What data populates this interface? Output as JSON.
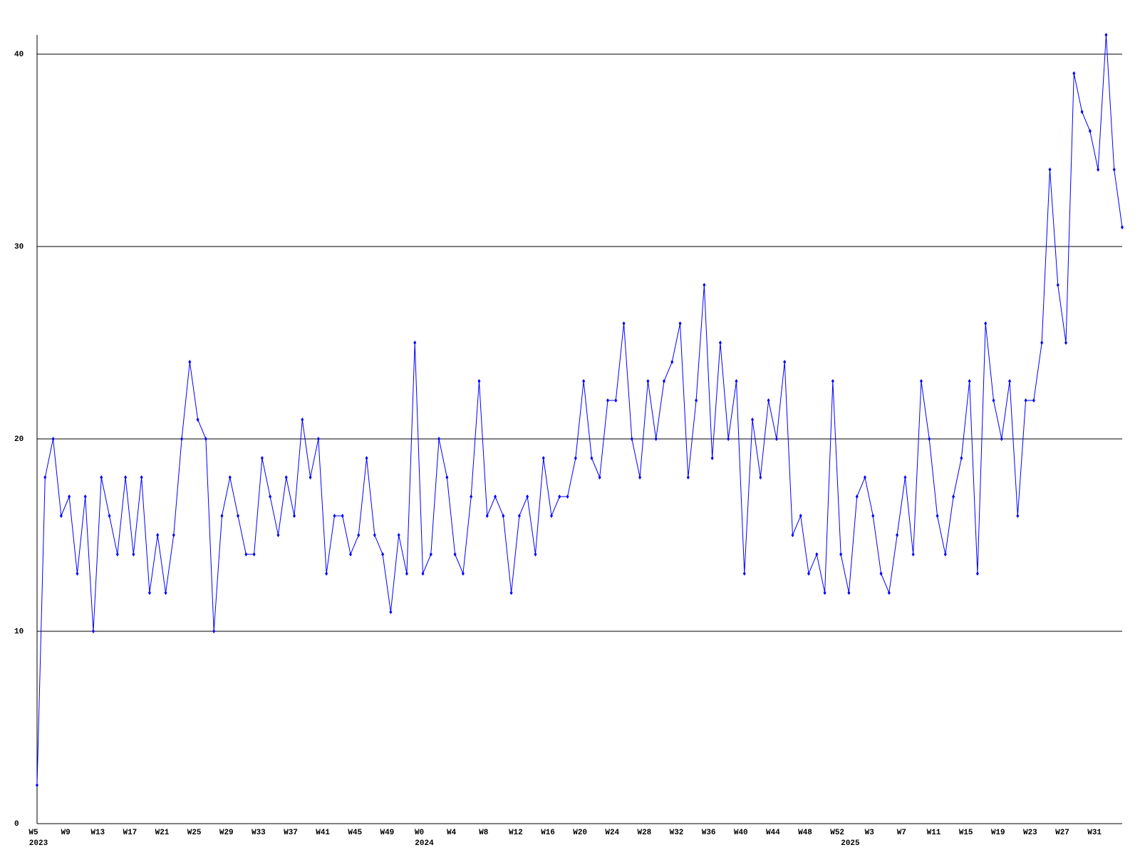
{
  "chart_data": {
    "type": "line",
    "categories": [
      "W5",
      null,
      null,
      null,
      "W9",
      null,
      null,
      null,
      "W13",
      null,
      null,
      null,
      "W17",
      null,
      null,
      null,
      "W21",
      null,
      null,
      null,
      "W25",
      null,
      null,
      null,
      "W29",
      null,
      null,
      null,
      "W33",
      null,
      null,
      null,
      "W37",
      null,
      null,
      null,
      "W41",
      null,
      null,
      null,
      "W45",
      null,
      null,
      null,
      "W49",
      null,
      null,
      null,
      "W0",
      null,
      null,
      null,
      "W4",
      null,
      null,
      null,
      "W8",
      null,
      null,
      null,
      "W12",
      null,
      null,
      null,
      "W16",
      null,
      null,
      null,
      "W20",
      null,
      null,
      null,
      "W24",
      null,
      null,
      null,
      "W28",
      null,
      null,
      null,
      "W32",
      null,
      null,
      null,
      "W36",
      null,
      null,
      null,
      "W40",
      null,
      null,
      null,
      "W44",
      null,
      null,
      null,
      "W48",
      null,
      null,
      null,
      "W52",
      null,
      null,
      null,
      "W3",
      null,
      null,
      null,
      "W7",
      null,
      null,
      null,
      "W11",
      null,
      null,
      null,
      "W15",
      null,
      null,
      null,
      "W19",
      null,
      null,
      null,
      "W23",
      null,
      null,
      null,
      "W27",
      null,
      null,
      null,
      "W31",
      null,
      null,
      null
    ],
    "years": [
      "2023",
      null,
      null,
      null,
      null,
      null,
      null,
      null,
      null,
      null,
      null,
      null,
      null,
      null,
      null,
      null,
      null,
      null,
      null,
      null,
      null,
      null,
      null,
      null,
      null,
      null,
      null,
      null,
      null,
      null,
      null,
      null,
      null,
      null,
      null,
      null,
      null,
      null,
      null,
      null,
      null,
      null,
      null,
      null,
      null,
      null,
      null,
      null,
      "2024",
      null,
      null,
      null,
      null,
      null,
      null,
      null,
      null,
      null,
      null,
      null,
      null,
      null,
      null,
      null,
      null,
      null,
      null,
      null,
      null,
      null,
      null,
      null,
      null,
      null,
      null,
      null,
      null,
      null,
      null,
      null,
      null,
      null,
      null,
      null,
      null,
      null,
      null,
      null,
      null,
      null,
      null,
      null,
      null,
      null,
      null,
      null,
      null,
      null,
      null,
      null,
      null,
      "2025",
      null,
      null,
      null,
      null,
      null,
      null,
      null,
      null,
      null,
      null,
      null,
      null,
      null,
      null,
      null,
      null,
      null,
      null,
      null,
      null,
      null,
      null,
      null,
      null,
      null,
      null,
      null,
      null,
      null,
      null,
      null,
      null,
      null,
      null
    ],
    "series": [
      {
        "color": "#0000ff",
        "values": [
          2,
          18,
          20,
          16,
          17,
          13,
          17,
          10,
          18,
          16,
          14,
          18,
          14,
          18,
          12,
          15,
          12,
          15,
          20,
          24,
          21,
          20,
          10,
          16,
          18,
          16,
          14,
          14,
          19,
          17,
          15,
          18,
          16,
          21,
          18,
          20,
          13,
          16,
          16,
          14,
          15,
          19,
          15,
          14,
          11,
          15,
          13,
          25,
          13,
          14,
          20,
          18,
          14,
          13,
          17,
          23,
          16,
          17,
          16,
          12,
          16,
          17,
          14,
          19,
          16,
          17,
          17,
          19,
          23,
          19,
          18,
          22,
          22,
          26,
          20,
          18,
          23,
          20,
          23,
          24,
          26,
          18,
          22,
          28,
          19,
          25,
          20,
          23,
          13,
          21,
          18,
          22,
          20,
          24,
          15,
          16,
          13,
          14,
          12,
          23,
          14,
          12,
          17,
          18,
          16,
          13,
          12,
          15,
          18,
          14,
          23,
          20,
          16,
          14,
          17,
          19,
          23,
          13,
          26,
          22,
          20,
          23,
          16,
          22,
          22,
          25,
          34,
          28,
          25,
          39,
          37,
          36,
          34,
          41,
          34,
          31
        ]
      }
    ],
    "ylim": [
      0,
      41
    ],
    "yticks": [
      0,
      10,
      20,
      30,
      40
    ],
    "grid": true
  }
}
